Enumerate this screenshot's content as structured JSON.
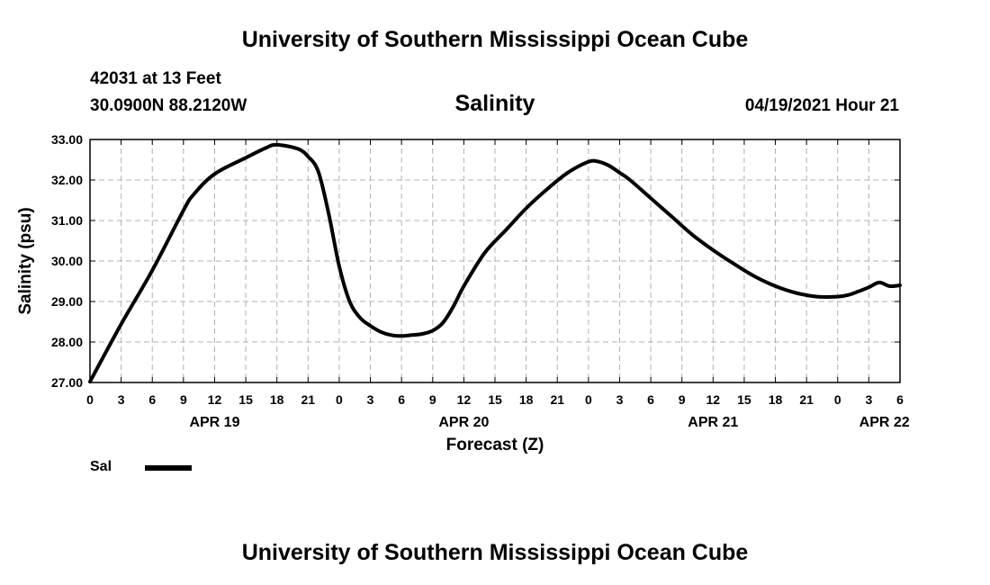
{
  "header": {
    "title": "University of Southern Mississippi Ocean Cube",
    "station": "42031 at 13 Feet",
    "coords": "30.0900N  88.2120W",
    "parameter": "Salinity",
    "datetime": "04/19/2021 Hour 21",
    "footer_title": "University of Southern Mississippi Ocean Cube"
  },
  "legend": {
    "label": "Sal",
    "color": "#000000"
  },
  "chart_data": {
    "type": "line",
    "title": "Salinity",
    "xlabel": "Forecast (Z)",
    "ylabel": "Salinity (psu)",
    "ylim": [
      27.0,
      33.0
    ],
    "xlim": [
      0,
      78
    ],
    "y_ticks": [
      "27.00",
      "28.00",
      "29.00",
      "30.00",
      "31.00",
      "32.00",
      "33.00"
    ],
    "x_ticks": [
      "0",
      "3",
      "6",
      "9",
      "12",
      "15",
      "18",
      "21",
      "0",
      "3",
      "6",
      "9",
      "12",
      "15",
      "18",
      "21",
      "0",
      "3",
      "6",
      "9",
      "12",
      "15",
      "18",
      "21",
      "0",
      "3",
      "6"
    ],
    "x_tick_step_hours": 3,
    "date_labels": [
      {
        "label": "APR 19",
        "hour": 12
      },
      {
        "label": "APR 20",
        "hour": 36
      },
      {
        "label": "APR 21",
        "hour": 60
      },
      {
        "label": "APR 22",
        "hour": 76.5
      }
    ],
    "grid": true,
    "series": [
      {
        "name": "Sal",
        "color": "#000000",
        "x": [
          0,
          3,
          6,
          9,
          10,
          12,
          15,
          17,
          18,
          20,
          21,
          22,
          23,
          24,
          25,
          26,
          27,
          28,
          29,
          30,
          31,
          32,
          33,
          34,
          35,
          36,
          38,
          40,
          42,
          44,
          46,
          48,
          49,
          50,
          51,
          52,
          54,
          56,
          58,
          60,
          62,
          64,
          66,
          68,
          70,
          72,
          73,
          74,
          75,
          76,
          77,
          78
        ],
        "values": [
          27.02,
          28.44,
          29.77,
          31.25,
          31.65,
          32.15,
          32.55,
          32.8,
          32.87,
          32.77,
          32.58,
          32.2,
          31.15,
          29.87,
          29.0,
          28.6,
          28.4,
          28.25,
          28.17,
          28.15,
          28.17,
          28.2,
          28.28,
          28.48,
          28.88,
          29.38,
          30.2,
          30.75,
          31.3,
          31.77,
          32.18,
          32.45,
          32.45,
          32.35,
          32.18,
          32.0,
          31.55,
          31.1,
          30.65,
          30.27,
          29.93,
          29.62,
          29.38,
          29.21,
          29.12,
          29.12,
          29.16,
          29.25,
          29.35,
          29.47,
          29.38,
          29.4
        ]
      }
    ]
  }
}
